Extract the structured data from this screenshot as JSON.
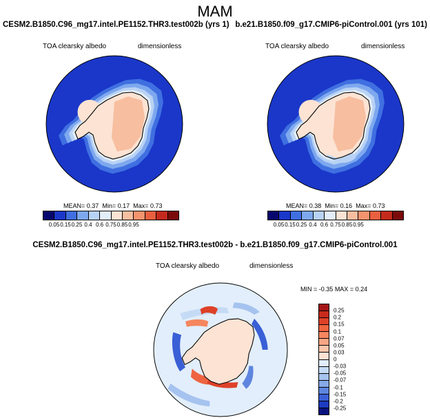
{
  "figure": {
    "season": "MAM",
    "diff_title": "CESM2.B1850.C96_mg17.intel.PE1152.THR3.test002b - b.e21.B1850.f09_g17.CMIP6-piControl.001"
  },
  "chart_data": [
    {
      "type": "heatmap",
      "projection": "south-polar-stereographic",
      "case_title": "CESM2.B1850.C96_mg17.intel.PE1152.THR3.test002b (yrs 1)",
      "variable": "TOA clearsky albedo",
      "units": "dimensionless",
      "mean_label": "MEAN=",
      "mean": "0.37",
      "min_label": "Min=",
      "min": "0.17",
      "max_label": "Max=",
      "max": "0.73",
      "colorbar": {
        "levels": [
          "0.05",
          "0.15",
          "0.25",
          "0.4",
          "0.6",
          "0.75",
          "0.85",
          "0.95"
        ],
        "colors": [
          "#08076e",
          "#1a37c9",
          "#3f6fe0",
          "#7ea8ee",
          "#b8d2f5",
          "#e3eefb",
          "#fde3d3",
          "#f7bea0",
          "#f4946e",
          "#e8603f",
          "#c42a1c",
          "#7b0b0b"
        ]
      }
    },
    {
      "type": "heatmap",
      "projection": "south-polar-stereographic",
      "case_title": "b.e21.B1850.f09_g17.CMIP6-piControl.001 (yrs 101)",
      "variable": "TOA clearsky albedo",
      "units": "dimensionless",
      "mean_label": "MEAN=",
      "mean": "0.38",
      "min_label": "Min=",
      "min": "0.16",
      "max_label": "Max=",
      "max": "0.73",
      "colorbar": {
        "levels": [
          "0.05",
          "0.15",
          "0.25",
          "0.4",
          "0.6",
          "0.75",
          "0.85",
          "0.95"
        ],
        "colors": [
          "#08076e",
          "#1a37c9",
          "#3f6fe0",
          "#7ea8ee",
          "#b8d2f5",
          "#e3eefb",
          "#fde3d3",
          "#f7bea0",
          "#f4946e",
          "#e8603f",
          "#c42a1c",
          "#7b0b0b"
        ]
      }
    },
    {
      "type": "heatmap",
      "projection": "south-polar-stereographic",
      "variable": "TOA clearsky albedo",
      "units": "dimensionless",
      "min_label": "MIN =",
      "min": "-0.35",
      "max_label": "MAX =",
      "max": "0.24",
      "colorbar": {
        "levels": [
          "0.25",
          "0.2",
          "0.15",
          "0.1",
          "0.07",
          "0.05",
          "0.03",
          "0",
          "-0.03",
          "-0.05",
          "-0.07",
          "-0.1",
          "-0.15",
          "-0.2",
          "-0.25"
        ],
        "colors": [
          "#a51515",
          "#c72a1c",
          "#dd4128",
          "#ee6441",
          "#f5865f",
          "#f8a683",
          "#fbc6ab",
          "#fde3d4",
          "#e2eefb",
          "#c5dbf5",
          "#a6c3ef",
          "#86a9e8",
          "#5e85df",
          "#3a5fd6",
          "#1d3bc2",
          "#08127e"
        ]
      }
    }
  ]
}
